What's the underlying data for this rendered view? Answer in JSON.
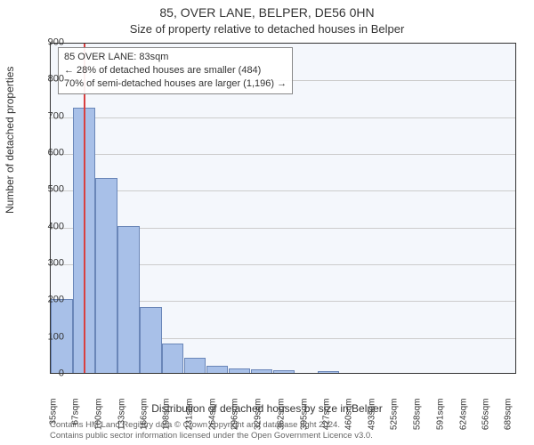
{
  "title": "85, OVER LANE, BELPER, DE56 0HN",
  "subtitle": "Size of property relative to detached houses in Belper",
  "ylabel": "Number of detached properties",
  "xlabel": "Distribution of detached houses by size in Belper",
  "footnote_line1": "Contains HM Land Registry data © Crown copyright and database right 2024.",
  "footnote_line2": "Contains public sector information licensed under the Open Government Licence v3.0.",
  "chart": {
    "type": "histogram",
    "background_color": "#f4f7fc",
    "grid_color": "#cccccc",
    "border_color": "#333333",
    "bar_color": "#a8c0e8",
    "bar_border_color": "#6a86b8",
    "marker_color": "#d94040",
    "text_color": "#333333",
    "ylim": [
      0,
      900
    ],
    "ytick_step": 100,
    "yticks": [
      0,
      100,
      200,
      300,
      400,
      500,
      600,
      700,
      800,
      900
    ],
    "xlim": [
      35,
      705
    ],
    "xtick_step": 33,
    "xticks": [
      35,
      67,
      100,
      133,
      166,
      198,
      231,
      264,
      296,
      329,
      362,
      395,
      427,
      460,
      493,
      525,
      558,
      591,
      624,
      656,
      689
    ],
    "xtick_labels": [
      "35sqm",
      "67sqm",
      "100sqm",
      "133sqm",
      "166sqm",
      "198sqm",
      "231sqm",
      "264sqm",
      "296sqm",
      "329sqm",
      "362sqm",
      "395sqm",
      "427sqm",
      "460sqm",
      "493sqm",
      "525sqm",
      "558sqm",
      "591sqm",
      "624sqm",
      "656sqm",
      "689sqm"
    ],
    "bar_width": 0.98,
    "values": [
      200,
      720,
      530,
      400,
      180,
      80,
      40,
      20,
      12,
      10,
      8,
      0,
      5,
      0,
      0,
      0,
      0,
      0,
      0,
      0,
      0
    ],
    "marker_value_sqm": 83,
    "annotation": {
      "line1": "85 OVER LANE: 83sqm",
      "line2": "← 28% of detached houses are smaller (484)",
      "line3": "70% of semi-detached houses are larger (1,196) →"
    }
  }
}
